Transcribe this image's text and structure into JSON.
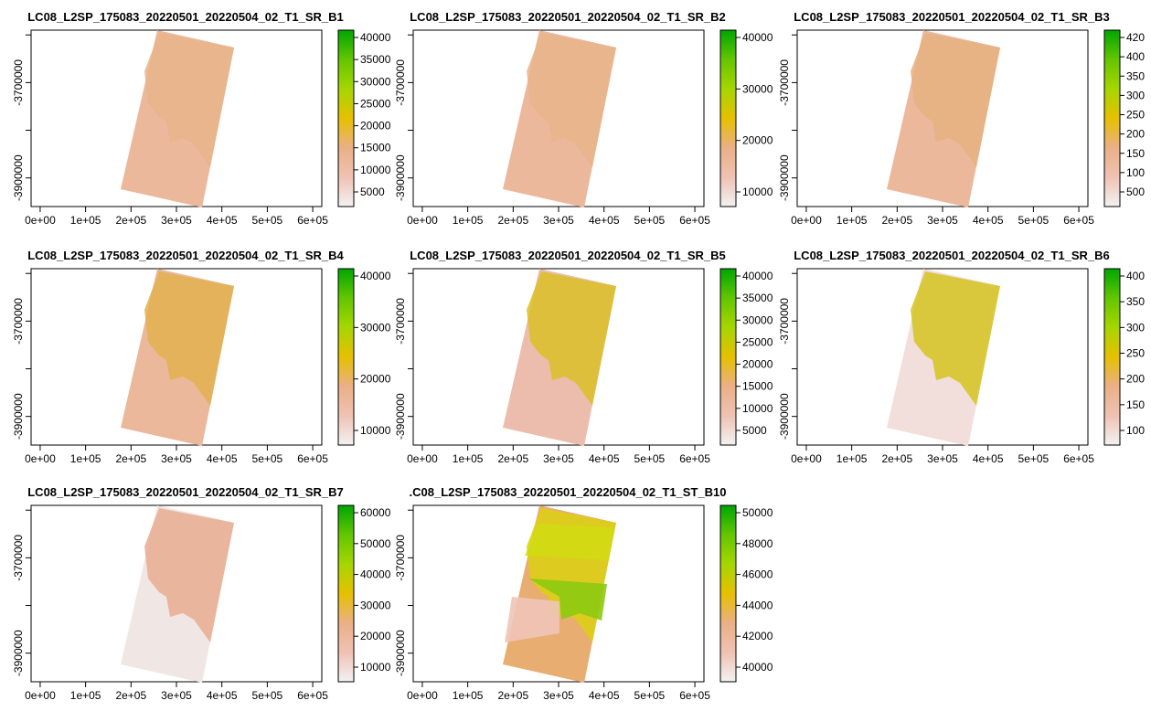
{
  "colors": {
    "ramp": [
      "#f2f2f2",
      "#efc2b3",
      "#eab086",
      "#e6c000",
      "#a6d600",
      "#63c600",
      "#00a600"
    ],
    "land_dark": "#e6b060",
    "land_yellow": "#d9c820"
  },
  "chart_data": [
    {
      "type": "heatmap",
      "title": "LC08_L2SP_175083_20220501_20220504_02_T1_SR_B1",
      "x_ticks": [
        "0e+00",
        "1e+05",
        "2e+05",
        "3e+05",
        "4e+05",
        "5e+05",
        "6e+05"
      ],
      "y_ticks": [
        "-3700000",
        "-3900000"
      ],
      "legend_ticks": [
        "40000",
        "35000",
        "30000",
        "25000",
        "20000",
        "15000",
        "10000",
        "5000"
      ],
      "legend_range": [
        0,
        42000
      ],
      "xlim": [
        -20000,
        620000
      ],
      "ylim": [
        -3960000,
        -3590000
      ]
    },
    {
      "type": "heatmap",
      "title": "LC08_L2SP_175083_20220501_20220504_02_T1_SR_B2",
      "x_ticks": [
        "0e+00",
        "1e+05",
        "2e+05",
        "3e+05",
        "4e+05",
        "5e+05",
        "6e+05"
      ],
      "y_ticks": [
        "-3700000",
        "-3900000"
      ],
      "legend_ticks": [
        "40000",
        "30000",
        "20000",
        "10000"
      ],
      "legend_range": [
        0,
        43000
      ],
      "xlim": [
        -20000,
        620000
      ],
      "ylim": [
        -3960000,
        -3590000
      ]
    },
    {
      "type": "heatmap",
      "title": "LC08_L2SP_175083_20220501_20220504_02_T1_SR_B3",
      "x_ticks": [
        "0e+00",
        "1e+05",
        "2e+05",
        "3e+05",
        "4e+05",
        "5e+05",
        "6e+05"
      ],
      "y_ticks": [
        "-3700000",
        "-3900000"
      ],
      "legend_ticks": [
        "420",
        "400",
        "350",
        "300",
        "250",
        "200",
        "150",
        "100",
        "500"
      ],
      "legend_range": [
        0,
        42000
      ],
      "xlim": [
        -20000,
        620000
      ],
      "ylim": [
        -3960000,
        -3590000
      ]
    },
    {
      "type": "heatmap",
      "title": "LC08_L2SP_175083_20220501_20220504_02_T1_SR_B4",
      "x_ticks": [
        "0e+00",
        "1e+05",
        "2e+05",
        "3e+05",
        "4e+05",
        "5e+05",
        "6e+05"
      ],
      "y_ticks": [
        "-3700000",
        "-3900000"
      ],
      "legend_ticks": [
        "40000",
        "30000",
        "20000",
        "10000"
      ],
      "legend_range": [
        0,
        43000
      ],
      "xlim": [
        -20000,
        620000
      ],
      "ylim": [
        -3960000,
        -3590000
      ]
    },
    {
      "type": "heatmap",
      "title": "LC08_L2SP_175083_20220501_20220504_02_T1_SR_B5",
      "x_ticks": [
        "0e+00",
        "1e+05",
        "2e+05",
        "3e+05",
        "4e+05",
        "5e+05",
        "6e+05"
      ],
      "y_ticks": [
        "-3700000",
        "-3900000"
      ],
      "legend_ticks": [
        "40000",
        "35000",
        "30000",
        "25000",
        "20000",
        "15000",
        "10000",
        "5000"
      ],
      "legend_range": [
        0,
        42000
      ],
      "xlim": [
        -20000,
        620000
      ],
      "ylim": [
        -3960000,
        -3590000
      ]
    },
    {
      "type": "heatmap",
      "title": "LC08_L2SP_175083_20220501_20220504_02_T1_SR_B6",
      "x_ticks": [
        "0e+00",
        "1e+05",
        "2e+05",
        "3e+05",
        "4e+05",
        "5e+05",
        "6e+05"
      ],
      "y_ticks": [
        "-3700000",
        "-3900000"
      ],
      "legend_ticks": [
        "400",
        "350",
        "300",
        "250",
        "200",
        "150",
        "100"
      ],
      "legend_range": [
        0,
        42000
      ],
      "xlim": [
        -20000,
        620000
      ],
      "ylim": [
        -3960000,
        -3590000
      ]
    },
    {
      "type": "heatmap",
      "title": "LC08_L2SP_175083_20220501_20220504_02_T1_SR_B7",
      "x_ticks": [
        "0e+00",
        "1e+05",
        "2e+05",
        "3e+05",
        "4e+05",
        "5e+05",
        "6e+05"
      ],
      "y_ticks": [
        "-3700000",
        "-3900000"
      ],
      "legend_ticks": [
        "60000",
        "50000",
        "40000",
        "30000",
        "20000",
        "10000"
      ],
      "legend_range": [
        0,
        66000
      ],
      "xlim": [
        -20000,
        620000
      ],
      "ylim": [
        -3960000,
        -3590000
      ]
    },
    {
      "type": "heatmap",
      "title": ".C08_L2SP_175083_20220501_20220504_02_T1_ST_B10",
      "x_ticks": [
        "0e+00",
        "1e+05",
        "2e+05",
        "3e+05",
        "4e+05",
        "5e+05",
        "6e+05"
      ],
      "y_ticks": [
        "-3700000",
        "-3900000"
      ],
      "legend_ticks": [
        "50000",
        "48000",
        "46000",
        "44000",
        "42000",
        "40000"
      ],
      "legend_range": [
        38500,
        51000
      ],
      "xlim": [
        -20000,
        620000
      ],
      "ylim": [
        -3960000,
        -3590000
      ]
    }
  ]
}
